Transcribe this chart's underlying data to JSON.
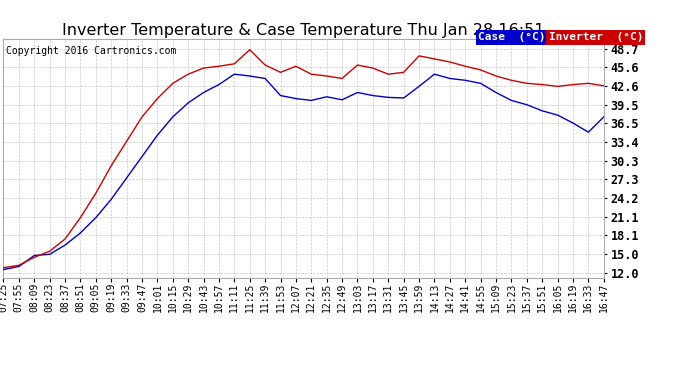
{
  "title": "Inverter Temperature & Case Temperature Thu Jan 28 16:51",
  "copyright": "Copyright 2016 Cartronics.com",
  "bg_color": "#ffffff",
  "plot_bg_color": "#ffffff",
  "grid_color": "#c8c8c8",
  "case_color": "#0000cc",
  "inverter_color": "#cc0000",
  "case_label": "Case  (°C)",
  "inverter_label": "Inverter  (°C)",
  "yticks": [
    12.0,
    15.0,
    18.1,
    21.1,
    24.2,
    27.3,
    30.3,
    33.4,
    36.5,
    39.5,
    42.6,
    45.6,
    48.7
  ],
  "ylim": [
    11.2,
    50.2
  ],
  "x_labels": [
    "07:25",
    "07:55",
    "08:09",
    "08:23",
    "08:37",
    "08:51",
    "09:05",
    "09:19",
    "09:33",
    "09:47",
    "10:01",
    "10:15",
    "10:29",
    "10:43",
    "10:57",
    "11:11",
    "11:25",
    "11:39",
    "11:53",
    "12:07",
    "12:21",
    "12:35",
    "12:49",
    "13:03",
    "13:17",
    "13:31",
    "13:45",
    "13:59",
    "14:13",
    "14:27",
    "14:41",
    "14:55",
    "15:09",
    "15:23",
    "15:37",
    "15:51",
    "16:05",
    "16:19",
    "16:33",
    "16:47"
  ],
  "case_data": [
    12.5,
    13.0,
    14.8,
    15.0,
    16.5,
    18.5,
    21.0,
    24.0,
    27.5,
    31.0,
    34.5,
    37.5,
    39.8,
    41.5,
    42.8,
    44.5,
    44.2,
    43.8,
    41.0,
    40.5,
    40.2,
    40.8,
    40.3,
    41.5,
    41.0,
    40.7,
    40.6,
    42.5,
    44.5,
    43.8,
    43.5,
    43.0,
    41.5,
    40.2,
    39.5,
    38.5,
    37.8,
    36.5,
    35.0,
    37.5
  ],
  "inverter_data": [
    12.8,
    13.2,
    14.5,
    15.5,
    17.5,
    21.0,
    25.0,
    29.5,
    33.5,
    37.5,
    40.5,
    43.0,
    44.5,
    45.5,
    45.8,
    46.2,
    48.5,
    46.0,
    44.8,
    45.8,
    44.5,
    44.2,
    43.8,
    46.0,
    45.5,
    44.5,
    44.8,
    47.5,
    47.0,
    46.5,
    45.8,
    45.2,
    44.2,
    43.5,
    43.0,
    42.8,
    42.5,
    42.8,
    43.0,
    42.6
  ],
  "title_fontsize": 11.5,
  "tick_fontsize": 8.5,
  "xlabel_fontsize": 7,
  "copyright_fontsize": 7,
  "legend_fontsize": 8
}
